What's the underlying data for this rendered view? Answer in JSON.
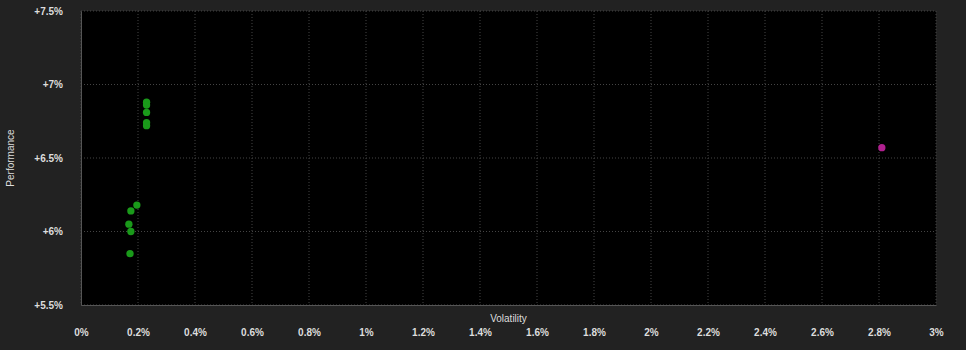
{
  "chart_data": {
    "type": "scatter",
    "x_label": "Volatility",
    "y_label": "Performance",
    "xlim": [
      0,
      3
    ],
    "ylim": [
      5.5,
      7.5
    ],
    "xticks": [
      {
        "value": 0,
        "label": "0%"
      },
      {
        "value": 0.2,
        "label": "0.2%"
      },
      {
        "value": 0.4,
        "label": "0.4%"
      },
      {
        "value": 0.6,
        "label": "0.6%"
      },
      {
        "value": 0.8,
        "label": "0.8%"
      },
      {
        "value": 1,
        "label": "1%"
      },
      {
        "value": 1.2,
        "label": "1.2%"
      },
      {
        "value": 1.4,
        "label": "1.4%"
      },
      {
        "value": 1.6,
        "label": "1.6%"
      },
      {
        "value": 1.8,
        "label": "1.8%"
      },
      {
        "value": 2,
        "label": "2%"
      },
      {
        "value": 2.2,
        "label": "2.2%"
      },
      {
        "value": 2.4,
        "label": "2.4%"
      },
      {
        "value": 2.6,
        "label": "2.6%"
      },
      {
        "value": 2.8,
        "label": "2.8%"
      },
      {
        "value": 3,
        "label": "3%"
      }
    ],
    "yticks": [
      {
        "value": 5.5,
        "label": "+5.5%"
      },
      {
        "value": 6,
        "label": "+6%"
      },
      {
        "value": 6.5,
        "label": "+6.5%"
      },
      {
        "value": 7,
        "label": "+7%"
      },
      {
        "value": 7.5,
        "label": "+7.5%"
      }
    ],
    "grid": true,
    "marker": "circle",
    "series": [
      {
        "color": "#1a9a1a",
        "x": [
          0.23,
          0.23,
          0.23,
          0.23,
          0.23,
          0.196,
          0.175,
          0.168,
          0.175,
          0.172
        ],
        "values": [
          6.88,
          6.86,
          6.81,
          6.74,
          6.72,
          6.18,
          6.14,
          6.05,
          6.0,
          5.85
        ]
      },
      {
        "color": "#b0208f",
        "x": [
          2.81
        ],
        "values": [
          6.57
        ]
      }
    ]
  }
}
